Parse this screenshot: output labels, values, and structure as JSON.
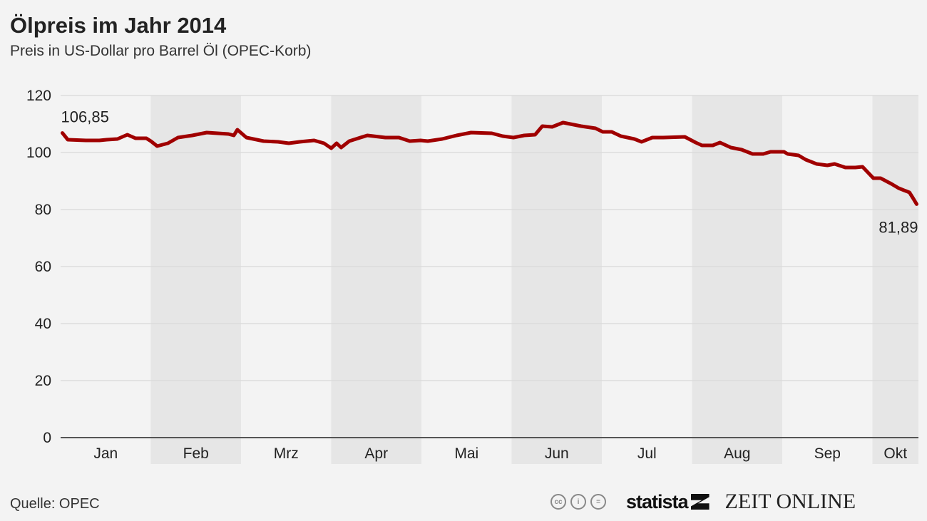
{
  "chart_data": {
    "type": "line",
    "title": "Ölpreis im Jahr 2014",
    "subtitle": "Preis in US-Dollar pro Barrel Öl (OPEC-Korb)",
    "xlabel": "",
    "ylabel": "",
    "ylim": [
      0,
      120
    ],
    "yticks": [
      "0",
      "20",
      "40",
      "60",
      "80",
      "100",
      "120"
    ],
    "ytick_values": [
      0,
      20,
      40,
      60,
      80,
      100,
      120
    ],
    "categories": [
      "Jan",
      "Feb",
      "Mrz",
      "Apr",
      "Mai",
      "Jun",
      "Jul",
      "Aug",
      "Sep",
      "Okt"
    ],
    "x_unit": "months since 1 Jan 2014",
    "xlim": [
      0,
      9.5
    ],
    "grid": true,
    "series": [
      {
        "name": "OPEC-Korb",
        "color": "#a00000",
        "x": [
          0.02,
          0.08,
          0.28,
          0.43,
          0.51,
          0.63,
          0.74,
          0.83,
          0.95,
          1.0,
          1.07,
          1.19,
          1.3,
          1.46,
          1.62,
          1.86,
          1.92,
          1.96,
          2.06,
          2.25,
          2.41,
          2.53,
          2.65,
          2.81,
          2.92,
          3.0,
          3.06,
          3.11,
          3.2,
          3.4,
          3.6,
          3.75,
          3.87,
          3.99,
          4.07,
          4.23,
          4.39,
          4.55,
          4.78,
          4.9,
          5.02,
          5.14,
          5.26,
          5.34,
          5.45,
          5.57,
          5.65,
          5.77,
          5.93,
          6.01,
          6.11,
          6.21,
          6.36,
          6.44,
          6.56,
          6.68,
          6.92,
          7.04,
          7.11,
          7.23,
          7.31,
          7.43,
          7.55,
          7.67,
          7.79,
          7.87,
          8.02,
          8.06,
          8.18,
          8.26,
          8.38,
          8.5,
          8.58,
          8.7,
          8.81,
          8.89,
          9.01,
          9.09,
          9.21,
          9.29,
          9.41,
          9.45,
          9.49
        ],
        "values": [
          106.85,
          104.5,
          104.25,
          104.25,
          104.5,
          104.75,
          106.25,
          105,
          105,
          104,
          102.25,
          103.25,
          105.25,
          106,
          107,
          106.5,
          106,
          108,
          105.25,
          104,
          103.75,
          103.25,
          103.75,
          104.25,
          103.25,
          101.5,
          103.25,
          101.75,
          104,
          106,
          105.25,
          105.25,
          104,
          104.25,
          104,
          104.75,
          106,
          107,
          106.75,
          105.75,
          105.25,
          106,
          106.25,
          109.25,
          109,
          110.5,
          110,
          109.25,
          108.5,
          107.25,
          107.25,
          105.75,
          104.75,
          103.75,
          105.25,
          105.25,
          105.5,
          103.5,
          102.5,
          102.5,
          103.5,
          101.75,
          101,
          99.5,
          99.5,
          100.25,
          100.25,
          99.5,
          99,
          97.5,
          96,
          95.5,
          96,
          94.75,
          94.75,
          95,
          91,
          91,
          89,
          87.5,
          86,
          84,
          81.89
        ]
      }
    ],
    "annotations": [
      {
        "text": "106,85",
        "x": 0.02,
        "value": 106.85,
        "position": "above-right"
      },
      {
        "text": "81,89",
        "x": 9.49,
        "value": 81.89,
        "position": "below-left"
      }
    ]
  },
  "footer": {
    "source": "Quelle: OPEC",
    "license_icons": [
      "cc-icon",
      "by-icon",
      "nd-icon"
    ],
    "license_glyphs": [
      "cc",
      "i",
      "="
    ],
    "brand1": "statista",
    "brand2": "ZEIT ONLINE"
  },
  "colors": {
    "background": "#f3f3f3",
    "band": "#e6e6e6",
    "line": "#a00000",
    "grid": "#dcdcdc"
  }
}
